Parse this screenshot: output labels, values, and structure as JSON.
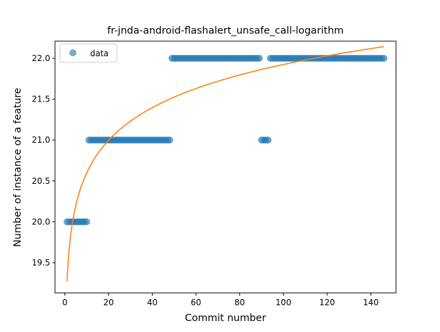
{
  "chart_data": {
    "type": "scatter",
    "title": "fr-jnda-android-flashalert_unsafe_call-logarithm",
    "xlabel": "Commit number",
    "ylabel": "Number of instance of a feature",
    "xlim": [
      -4.5,
      151.5
    ],
    "ylim": [
      19.13,
      22.21
    ],
    "xticks": [
      0,
      20,
      40,
      60,
      80,
      100,
      120,
      140
    ],
    "yticks": [
      19.5,
      20.0,
      20.5,
      21.0,
      21.5,
      22.0
    ],
    "xtick_labels": [
      "0",
      "20",
      "40",
      "60",
      "80",
      "100",
      "120",
      "140"
    ],
    "ytick_labels": [
      "19.5",
      "20.0",
      "20.5",
      "21.0",
      "21.5",
      "22.0"
    ],
    "grid": false,
    "legend": {
      "position": "top-left",
      "entries": [
        "data"
      ]
    },
    "colors": {
      "data": "#1f77b4",
      "fit": "#ff7f0e"
    },
    "series": [
      {
        "name": "data",
        "kind": "points",
        "segments": [
          {
            "x_from": 1,
            "x_to": 10,
            "y": 20
          },
          {
            "x_from": 11,
            "x_to": 48,
            "y": 21
          },
          {
            "x_from": 49,
            "x_to": 89,
            "y": 22
          },
          {
            "x_from": 90,
            "x_to": 93,
            "y": 21
          },
          {
            "x_from": 94,
            "x_to": 146,
            "y": 22
          }
        ]
      },
      {
        "kind": "fit-line",
        "model": "logarithmic",
        "a": 19.27,
        "b": 0.5765,
        "x_range": [
          1,
          146
        ]
      }
    ]
  }
}
